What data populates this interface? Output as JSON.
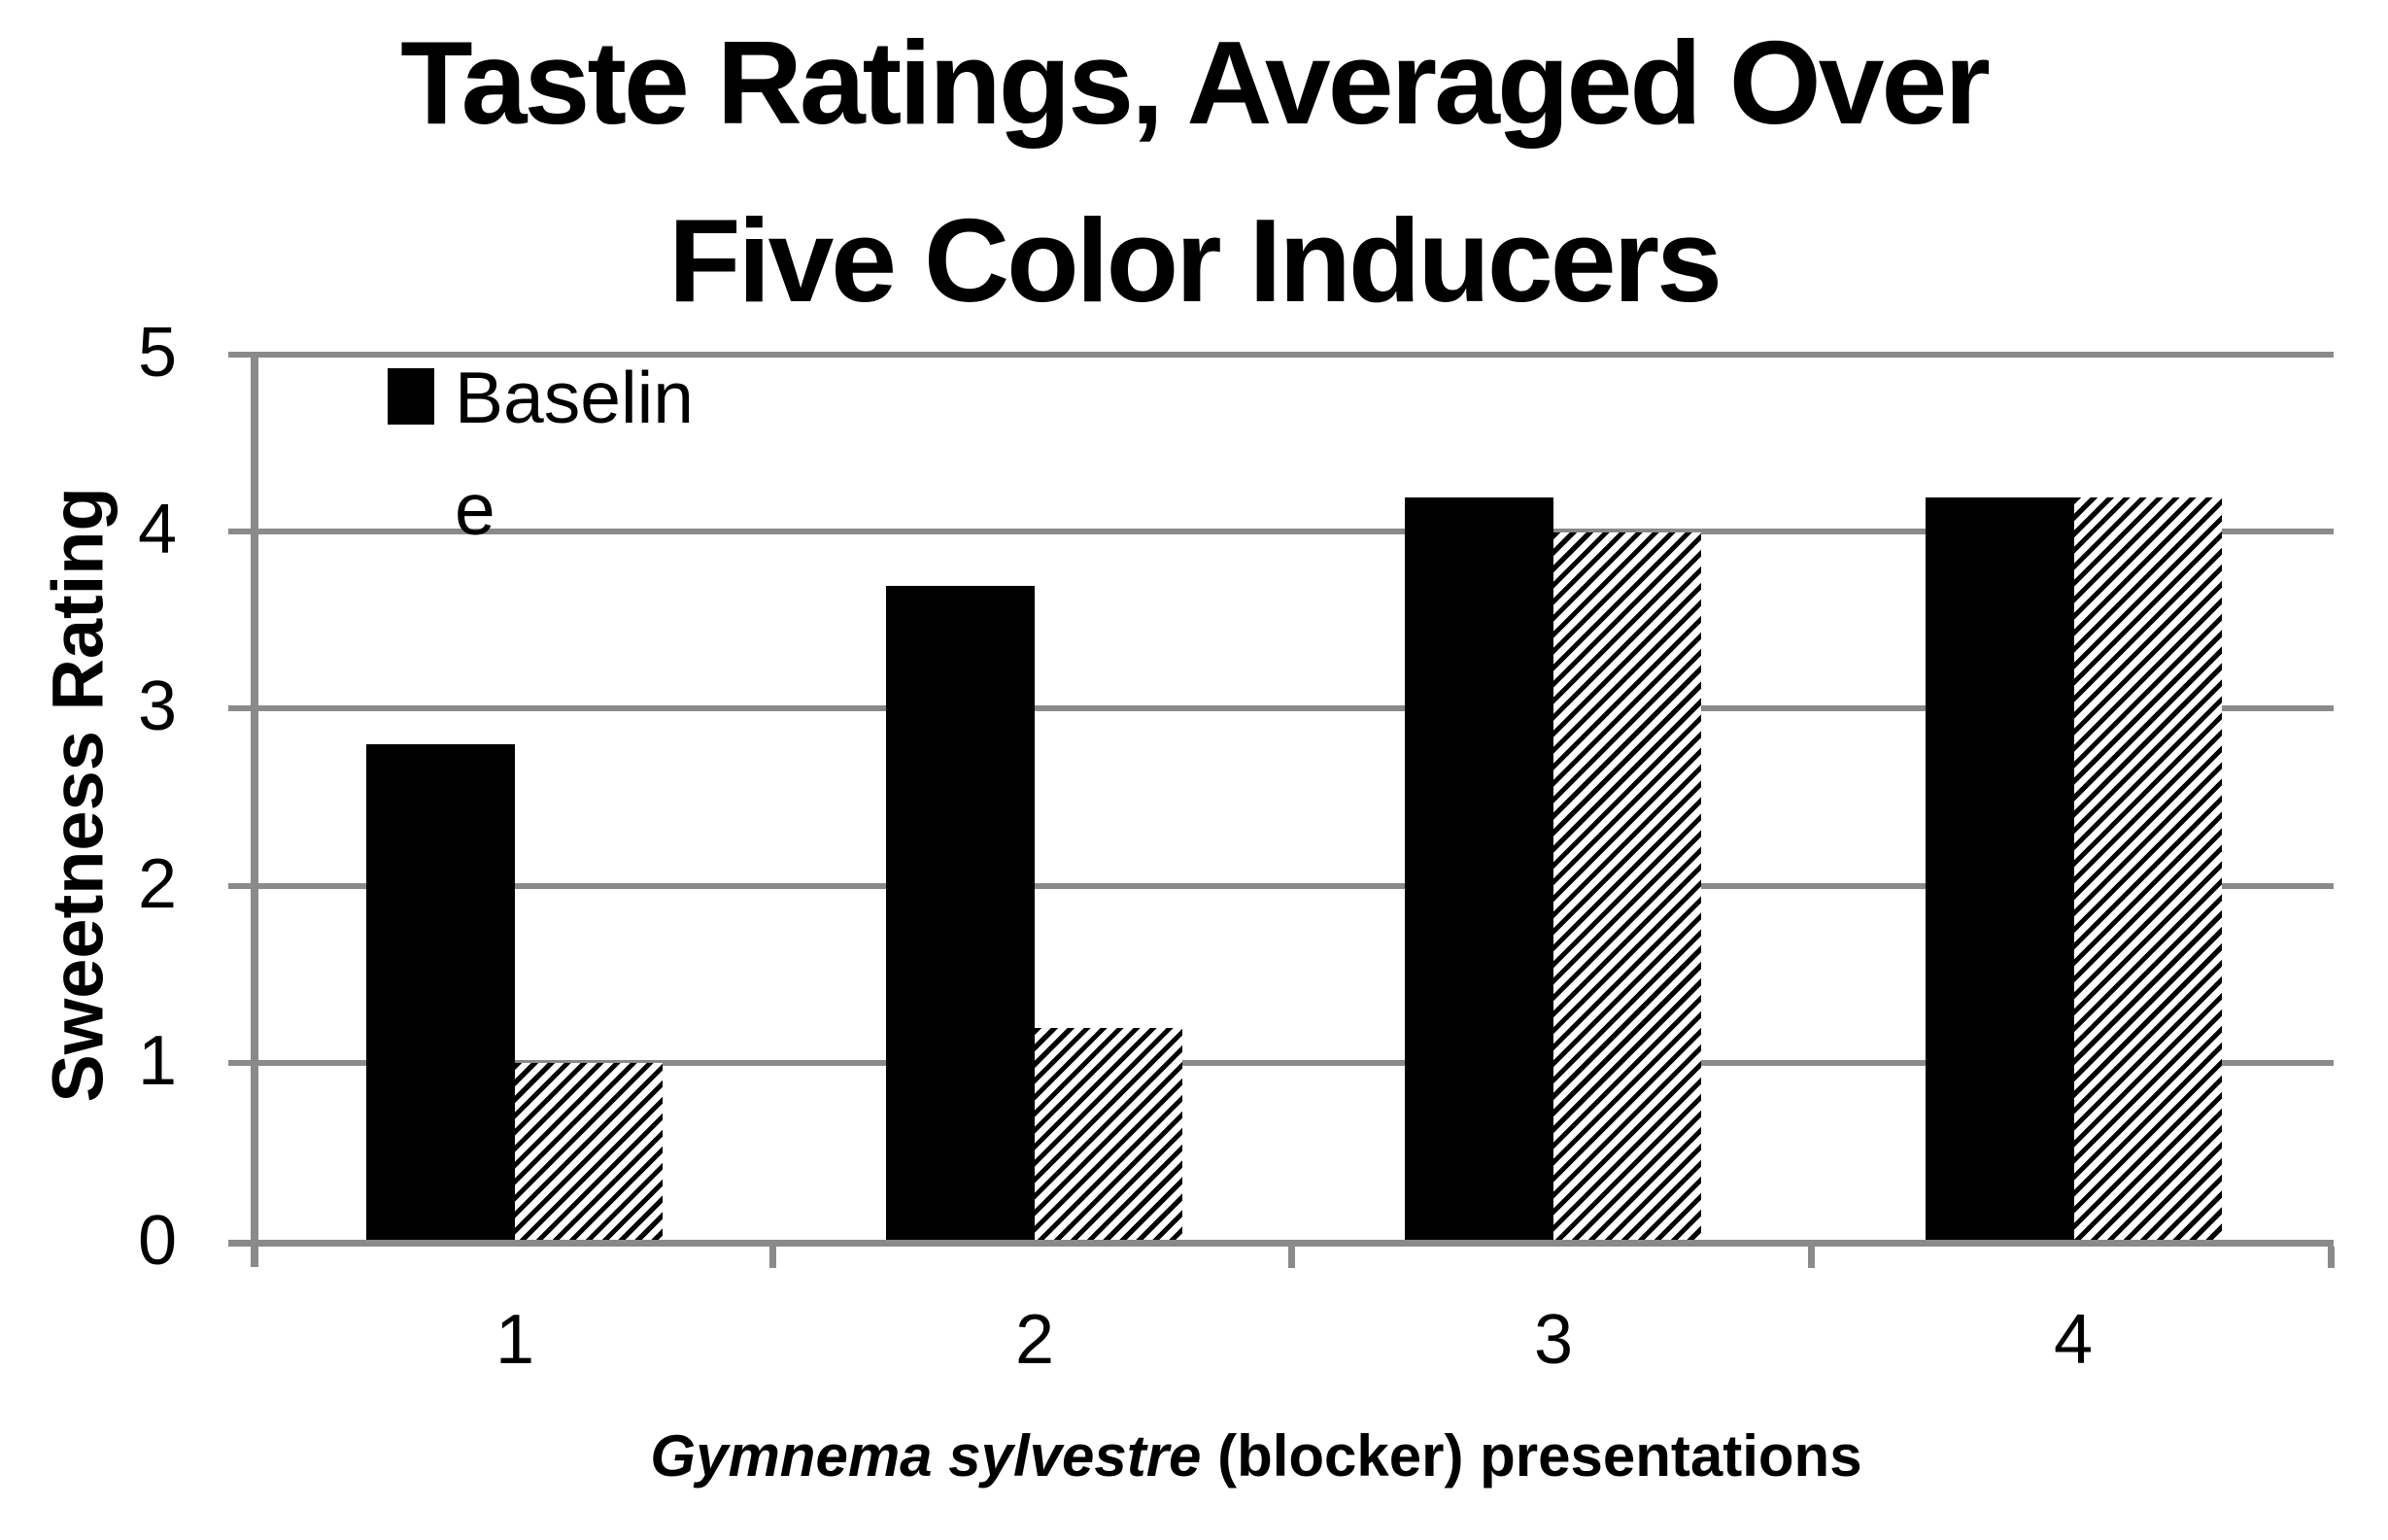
{
  "title": {
    "line1": "Taste Ratings, Averaged Over",
    "line2": "Five Color Inducers"
  },
  "y_axis": {
    "label": "Sweetness Rating",
    "ticks": [
      "5",
      "4",
      "3",
      "2",
      "1",
      "0"
    ]
  },
  "x_axis": {
    "label_italic": "Gymnema sylvestre",
    "label_rest": " (blocker) presentations",
    "ticks": [
      "1",
      "2",
      "3",
      "4"
    ]
  },
  "legend": {
    "label": "Baseline",
    "lines": [
      "Baselin",
      "e"
    ]
  },
  "colors": {
    "solid_bar": "#000000",
    "hatch_stripe": "#000000",
    "gridline": "#8a8a8a",
    "axis": "#8a8a8a",
    "background": "#ffffff"
  },
  "chart_data": {
    "type": "bar",
    "title": "Taste Ratings, Averaged Over Five Color Inducers",
    "categories": [
      "1",
      "2",
      "3",
      "4"
    ],
    "series": [
      {
        "name": "Baseline",
        "fill": "solid-black",
        "values": [
          2.8,
          3.7,
          4.2,
          4.2
        ]
      },
      {
        "name": "",
        "fill": "diagonal-hatch",
        "legend_visible": false,
        "values": [
          1.0,
          1.2,
          4.0,
          4.2
        ]
      }
    ],
    "xlabel": "Gymnema sylvestre (blocker) presentations",
    "ylabel": "Sweetness Rating",
    "ylim": [
      0,
      5
    ],
    "ytick_step": 1,
    "grid": "horizontal",
    "legend_position": "top-left-inside"
  }
}
